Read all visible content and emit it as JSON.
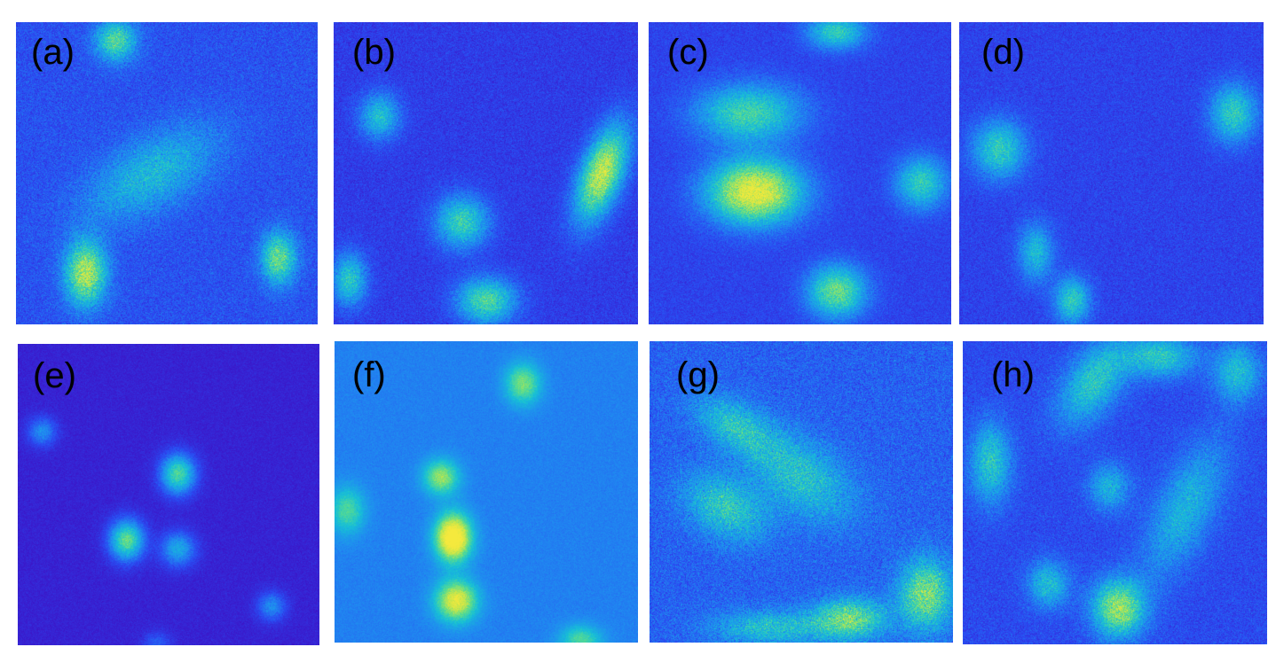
{
  "colormap": [
    "#3b16c8",
    "#2a4bf2",
    "#1f8ef0",
    "#17c0d6",
    "#59dc8e",
    "#c6e64a",
    "#f5e93d"
  ],
  "panels": [
    {
      "label": "(a)",
      "background_level": 0.18,
      "noise": 0.55,
      "blobs": [
        {
          "intensity": 0.55
        },
        {
          "intensity": 0.75
        },
        {
          "intensity": 0.6
        },
        {
          "intensity": 0.35
        }
      ]
    },
    {
      "label": "(b)",
      "background_level": 0.12,
      "noise": 0.45,
      "blobs": [
        {
          "intensity": 0.45
        },
        {
          "intensity": 0.85
        },
        {
          "intensity": 0.55
        },
        {
          "intensity": 0.5
        },
        {
          "intensity": 0.6
        }
      ]
    },
    {
      "label": "(c)",
      "background_level": 0.14,
      "noise": 0.4,
      "blobs": [
        {
          "intensity": 0.5
        },
        {
          "intensity": 0.55
        },
        {
          "intensity": 0.95
        },
        {
          "intensity": 0.5
        },
        {
          "intensity": 0.65
        }
      ]
    },
    {
      "label": "(d)",
      "background_level": 0.14,
      "noise": 0.45,
      "blobs": [
        {
          "intensity": 0.5
        },
        {
          "intensity": 0.5
        },
        {
          "intensity": 0.4
        },
        {
          "intensity": 0.5
        }
      ]
    },
    {
      "label": "(e)",
      "background_level": 0.04,
      "noise": 0.25,
      "blobs": [
        {
          "intensity": 0.35
        },
        {
          "intensity": 0.7
        },
        {
          "intensity": 0.75
        },
        {
          "intensity": 0.45
        },
        {
          "intensity": 0.35
        },
        {
          "intensity": 0.2
        }
      ]
    },
    {
      "label": "(f)",
      "background_level": 0.3,
      "noise": 0.22,
      "blobs": [
        {
          "intensity": 0.5
        },
        {
          "intensity": 0.55
        },
        {
          "intensity": 1.0
        },
        {
          "intensity": 0.75
        },
        {
          "intensity": 0.4
        },
        {
          "intensity": 0.4
        }
      ]
    },
    {
      "label": "(g)",
      "background_level": 0.22,
      "noise": 0.65,
      "blobs": [
        {
          "intensity": 0.35
        },
        {
          "intensity": 0.35
        },
        {
          "intensity": 0.4
        },
        {
          "intensity": 0.6
        },
        {
          "intensity": 0.55
        },
        {
          "intensity": 0.35
        }
      ]
    },
    {
      "label": "(h)",
      "background_level": 0.16,
      "noise": 0.5,
      "blobs": [
        {
          "intensity": 0.45
        },
        {
          "intensity": 0.45
        },
        {
          "intensity": 0.4
        },
        {
          "intensity": 0.45
        },
        {
          "intensity": 0.35
        },
        {
          "intensity": 0.7
        },
        {
          "intensity": 0.4
        },
        {
          "intensity": 0.35
        }
      ]
    }
  ]
}
